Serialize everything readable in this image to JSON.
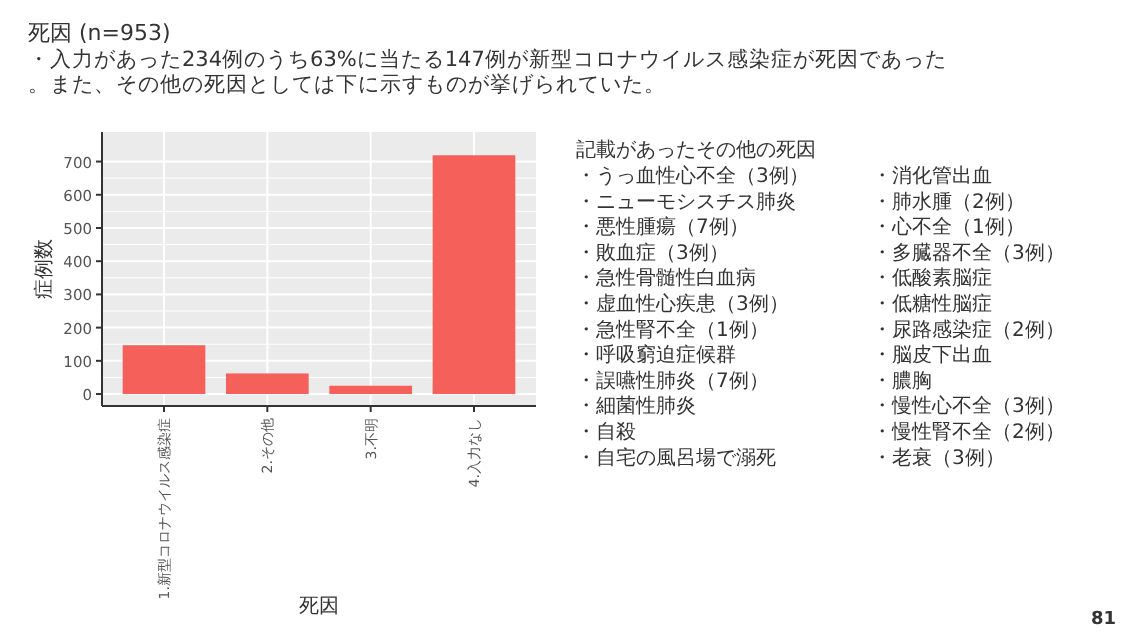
{
  "chart_data": {
    "type": "bar",
    "title": "死因 (n=953)",
    "subtitle": "・入力があった234例のうち63%に当たる147例が新型コロナウイルス感染症が死因であった。また、その他の死因としては下に示すものが挙げられていた。",
    "xlabel": "死因",
    "ylabel": "症例数",
    "categories": [
      "1.新型コロナウイルス感染症",
      "2.その他",
      "3.不明",
      "4.入力なし"
    ],
    "values": [
      147,
      62,
      25,
      719
    ],
    "color": "#f5605b",
    "ylim": [
      -36,
      789
    ],
    "yticks": [
      0,
      100,
      200,
      300,
      400,
      500,
      600,
      700
    ],
    "grid": true,
    "annotations": [
      "記載があったその他の死因",
      "・うっ血性心不全（3例）",
      "・ニューモシスチス肺炎",
      "・悪性腫瘍（7例）",
      "・敗血症（3例）",
      "・急性骨髄性白血病",
      "・虚血性心疾患（3例）",
      "・急性腎不全（1例）",
      "・呼吸窮迫症候群",
      "・誤嚥性肺炎（7例）",
      "・細菌性肺炎",
      "・自殺",
      "・自宅の風呂場で溺死",
      "・消化管出血",
      "・肺水腫（2例）",
      "・心不全（1例）",
      "・多臓器不全（3例）",
      "・低酸素脳症",
      "・低糖性脳症",
      "・尿路感染症（2例）",
      "・脳皮下出血",
      "・膿胸",
      "・慢性心不全（3例）",
      "・慢性腎不全（2例）",
      "・老衰（3例）",
      "81"
    ]
  }
}
